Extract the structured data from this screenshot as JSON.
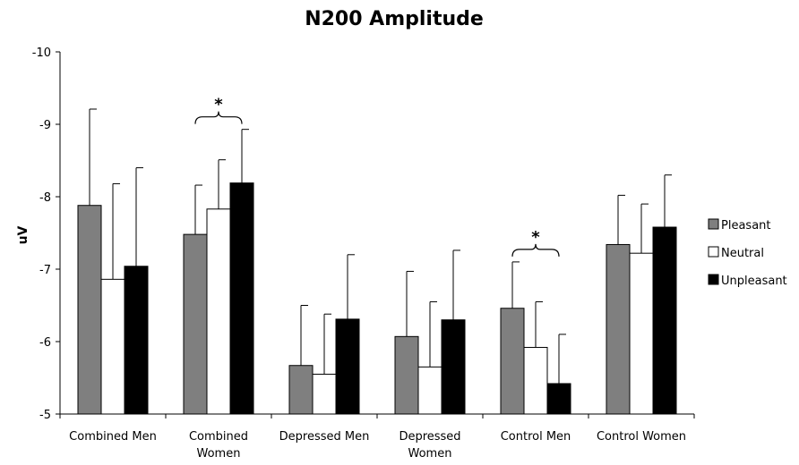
{
  "chart_data": {
    "type": "bar",
    "title": "N200 Amplitude",
    "xlabel": "",
    "ylabel": "uV",
    "ylim": [
      -5,
      -10
    ],
    "y_inverted": true,
    "yticks": [
      "-10",
      "-9",
      "-8",
      "-7",
      "-6",
      "-5"
    ],
    "categories": [
      [
        "Combined Men"
      ],
      [
        "Combined",
        "Women"
      ],
      [
        "Depressed Men"
      ],
      [
        "Depressed",
        "Women"
      ],
      [
        "Control Men"
      ],
      [
        "Control Women"
      ]
    ],
    "series": [
      {
        "name": "Pleasant",
        "color": "#7f7f7f",
        "values": [
          -7.88,
          -7.48,
          -5.67,
          -6.07,
          -6.46,
          -7.34
        ],
        "error": [
          1.33,
          0.68,
          0.83,
          0.9,
          0.64,
          0.68
        ]
      },
      {
        "name": "Neutral",
        "color": "#ffffff",
        "values": [
          -6.86,
          -7.83,
          -5.55,
          -5.65,
          -5.92,
          -7.22
        ],
        "error": [
          1.32,
          0.68,
          0.83,
          0.9,
          0.63,
          0.68
        ]
      },
      {
        "name": "Unpleasant",
        "color": "#000000",
        "values": [
          -7.04,
          -8.19,
          -6.31,
          -6.3,
          -5.42,
          -7.58
        ],
        "error": [
          1.36,
          0.74,
          0.89,
          0.96,
          0.68,
          0.72
        ]
      }
    ],
    "annotations": [
      {
        "category_index": 1,
        "text": "*",
        "brace_from_series": 0,
        "brace_to_series": 2
      },
      {
        "category_index": 4,
        "text": "*",
        "brace_from_series": 0,
        "brace_to_series": 2
      }
    ],
    "legend_position": "right",
    "grid": false
  }
}
